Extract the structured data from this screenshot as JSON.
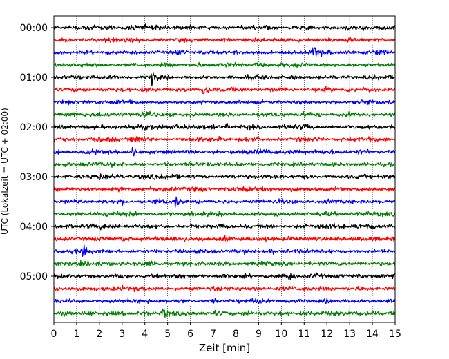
{
  "chart_data": {
    "type": "line",
    "title": "",
    "xlabel": "Zeit  [min]",
    "ylabel": "UTC (Lokalzeit = UTC + 02:00)",
    "xlim": [
      0,
      15
    ],
    "x_ticks": [
      "0",
      "1",
      "2",
      "3",
      "4",
      "5",
      "6",
      "7",
      "8",
      "9",
      "10",
      "11",
      "12",
      "13",
      "14",
      "15"
    ],
    "y_tick_labels": [
      "00:00",
      "01:00",
      "02:00",
      "03:00",
      "04:00",
      "05:00"
    ],
    "y_tick_trace_index": [
      0,
      4,
      8,
      12,
      16,
      20
    ],
    "trace_count": 24,
    "trace_minutes": 15,
    "color_cycle": [
      "#000000",
      "#ff0000",
      "#0000ff",
      "#008000"
    ],
    "grid": "vertical dotted lines at each minute",
    "events": [
      {
        "trace": 4,
        "minute": 4.3,
        "amplitude": 2.8
      },
      {
        "trace": 5,
        "minute": 6.6,
        "amplitude": 1.5
      },
      {
        "trace": 2,
        "minute": 11.4,
        "amplitude": 1.8
      },
      {
        "trace": 8,
        "minute": 7.6,
        "amplitude": 1.4
      },
      {
        "trace": 9,
        "minute": 3.6,
        "amplitude": 1.3
      },
      {
        "trace": 10,
        "minute": 3.5,
        "amplitude": 1.2
      },
      {
        "trace": 12,
        "minute": 2.0,
        "amplitude": 1.3
      },
      {
        "trace": 14,
        "minute": 5.3,
        "amplitude": 1.1
      },
      {
        "trace": 18,
        "minute": 1.3,
        "amplitude": 1.5
      },
      {
        "trace": 20,
        "minute": 10.3,
        "amplitude": 1.3
      },
      {
        "trace": 23,
        "minute": 4.8,
        "amplitude": 1.6
      }
    ]
  }
}
